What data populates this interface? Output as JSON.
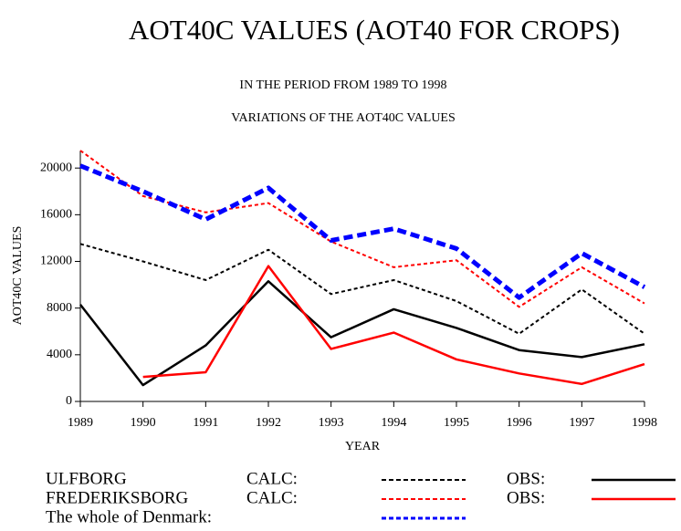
{
  "chart_data": {
    "type": "line",
    "title": "AOT40C VALUES (AOT40 FOR CROPS)",
    "subtitle": "IN THE PERIOD FROM 1989 TO 1998",
    "subtitle2": "VARIATIONS OF THE AOT40C VALUES",
    "xlabel": "YEAR",
    "ylabel": "AOT40C VALUES",
    "x": [
      1989,
      1990,
      1991,
      1992,
      1993,
      1994,
      1995,
      1996,
      1997,
      1998
    ],
    "xlim": [
      1989,
      1998
    ],
    "xticks": [
      1989,
      1990,
      1991,
      1992,
      1993,
      1994,
      1995,
      1996,
      1997,
      1998
    ],
    "ylim": [
      0,
      21500
    ],
    "yticks": [
      0,
      4000,
      8000,
      12000,
      16000,
      20000
    ],
    "series": [
      {
        "group": "ULFBORG",
        "name": "CALC:",
        "color": "#000000",
        "style": "dashed",
        "values": [
          13500,
          12000,
          10400,
          13000,
          9200,
          10400,
          8600,
          5800,
          9600,
          5800
        ]
      },
      {
        "group": "ULFBORG",
        "name": "OBS:",
        "color": "#000000",
        "style": "solid",
        "values": [
          8300,
          1400,
          4800,
          10300,
          5500,
          7900,
          6300,
          4400,
          3800,
          4900
        ]
      },
      {
        "group": "FREDERIKSBORG",
        "name": "CALC:",
        "color": "#ff0000",
        "style": "dashed",
        "values": [
          21500,
          17600,
          16200,
          17000,
          13700,
          11500,
          12100,
          8100,
          11500,
          8400
        ]
      },
      {
        "group": "FREDERIKSBORG",
        "name": "OBS:",
        "color": "#ff0000",
        "style": "solid",
        "values": [
          null,
          2100,
          2500,
          11600,
          4500,
          5900,
          3600,
          2400,
          1500,
          3200
        ]
      },
      {
        "name": "The whole of Denmark:",
        "color": "#0000ff",
        "style": "heavy-dashed",
        "values": [
          20200,
          18000,
          15600,
          18300,
          13800,
          14800,
          13100,
          8900,
          12700,
          9800
        ]
      }
    ]
  }
}
